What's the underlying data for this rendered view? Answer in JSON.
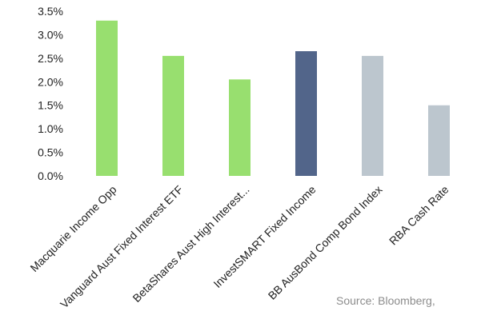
{
  "chart_data": {
    "type": "bar",
    "title": "",
    "xlabel": "",
    "ylabel": "",
    "categories": [
      "Macquarie Income Opp",
      "Vanguard Aust Fixed Interest ETF",
      "BetaShares Aust High Interest...",
      "InvestSMART Fixed Income",
      "BB AusBond Comp Bond Index",
      "RBA Cash Rate"
    ],
    "values": [
      3.3,
      2.55,
      2.05,
      2.65,
      2.55,
      1.5
    ],
    "bar_colors": [
      "#98df6f",
      "#98df6f",
      "#98df6f",
      "#52658a",
      "#bcc6ce",
      "#bcc6ce"
    ],
    "y_ticks": [
      0,
      0.5,
      1.0,
      1.5,
      2.0,
      2.5,
      3.0,
      3.5
    ],
    "y_tick_labels": [
      "0.0%",
      "0.5%",
      "1.0%",
      "1.5%",
      "2.0%",
      "2.5%",
      "3.0%",
      "3.5%"
    ],
    "ylim": [
      0,
      3.5
    ],
    "grid": false,
    "legend": "none"
  },
  "footer": {
    "source": "Source: Bloomberg,"
  }
}
